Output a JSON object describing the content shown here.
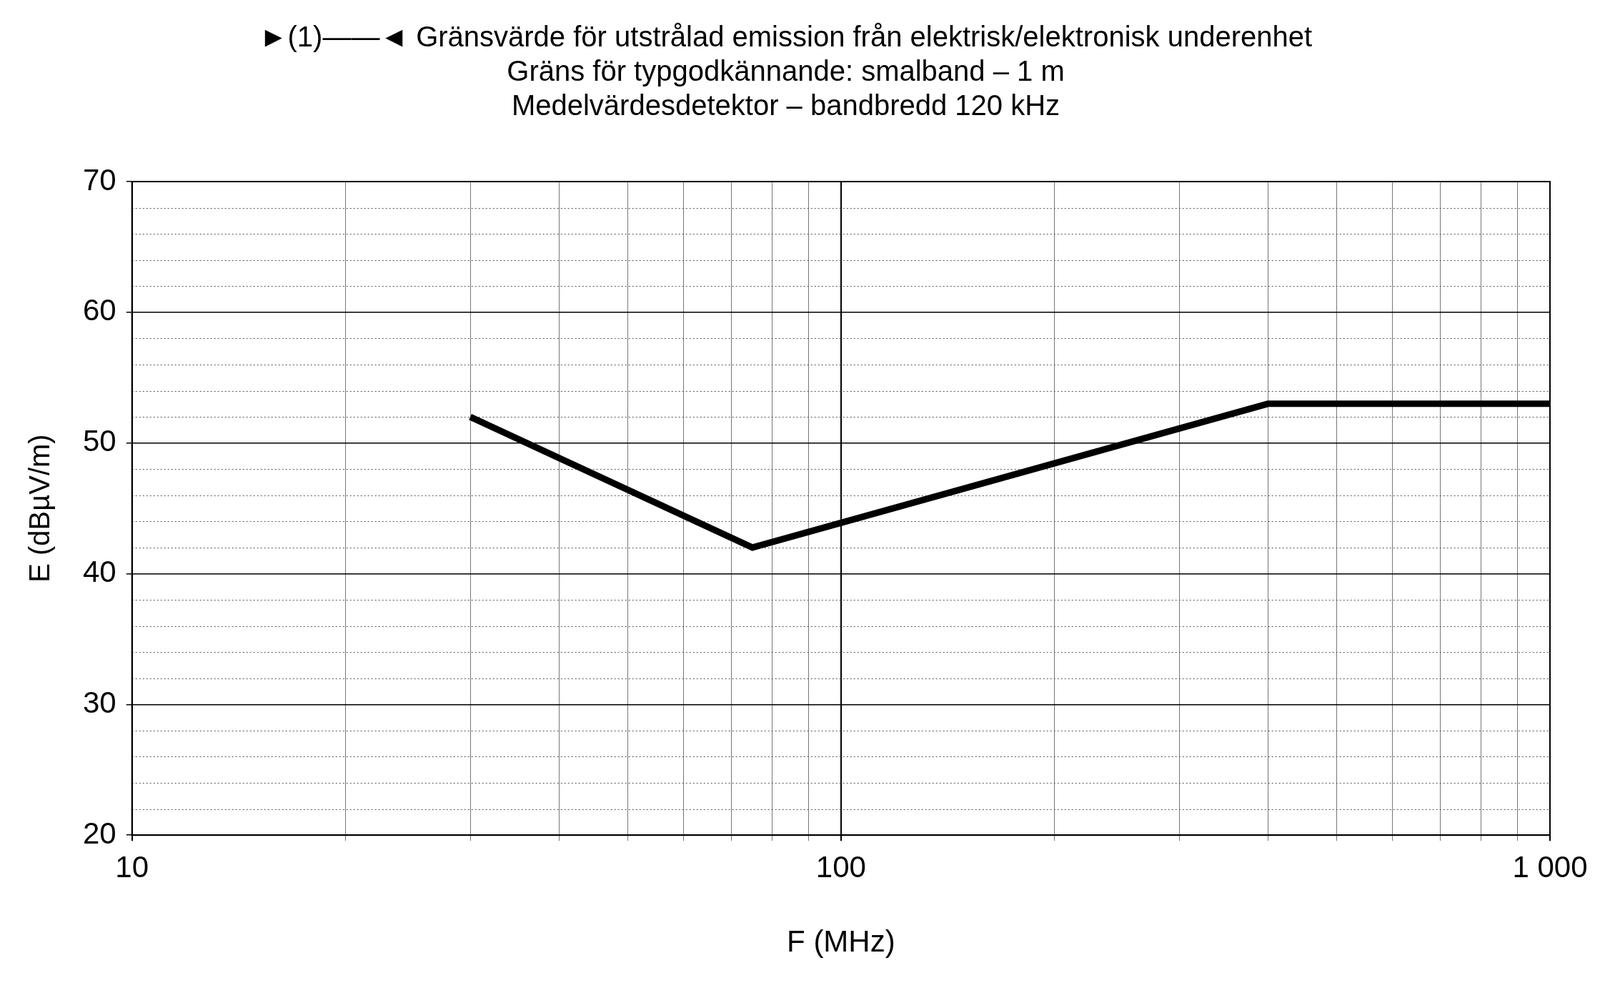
{
  "chart_data": {
    "type": "line",
    "title": [
      "►(1)——◄ Gränsvärde för utstrålad emission från elektrisk/elektronisk underenhet",
      "Gräns för typgodkännande: smalband – 1 m",
      "Medelvärdesdetektor – bandbredd 120 kHz"
    ],
    "x_label": "F (MHz)",
    "y_label": "E (dBµV/m)",
    "x": [
      30,
      75,
      400,
      1000
    ],
    "values": [
      52,
      42,
      53,
      53
    ],
    "color": "#000000",
    "log": "x",
    "xlim": [
      10,
      1000
    ],
    "xticks": [
      10,
      100,
      {
        "value": 1000,
        "label": "1 000"
      }
    ],
    "ylim": [
      20,
      70
    ],
    "yticks": [
      20,
      30,
      40,
      50,
      60,
      70
    ],
    "grid": true
  }
}
